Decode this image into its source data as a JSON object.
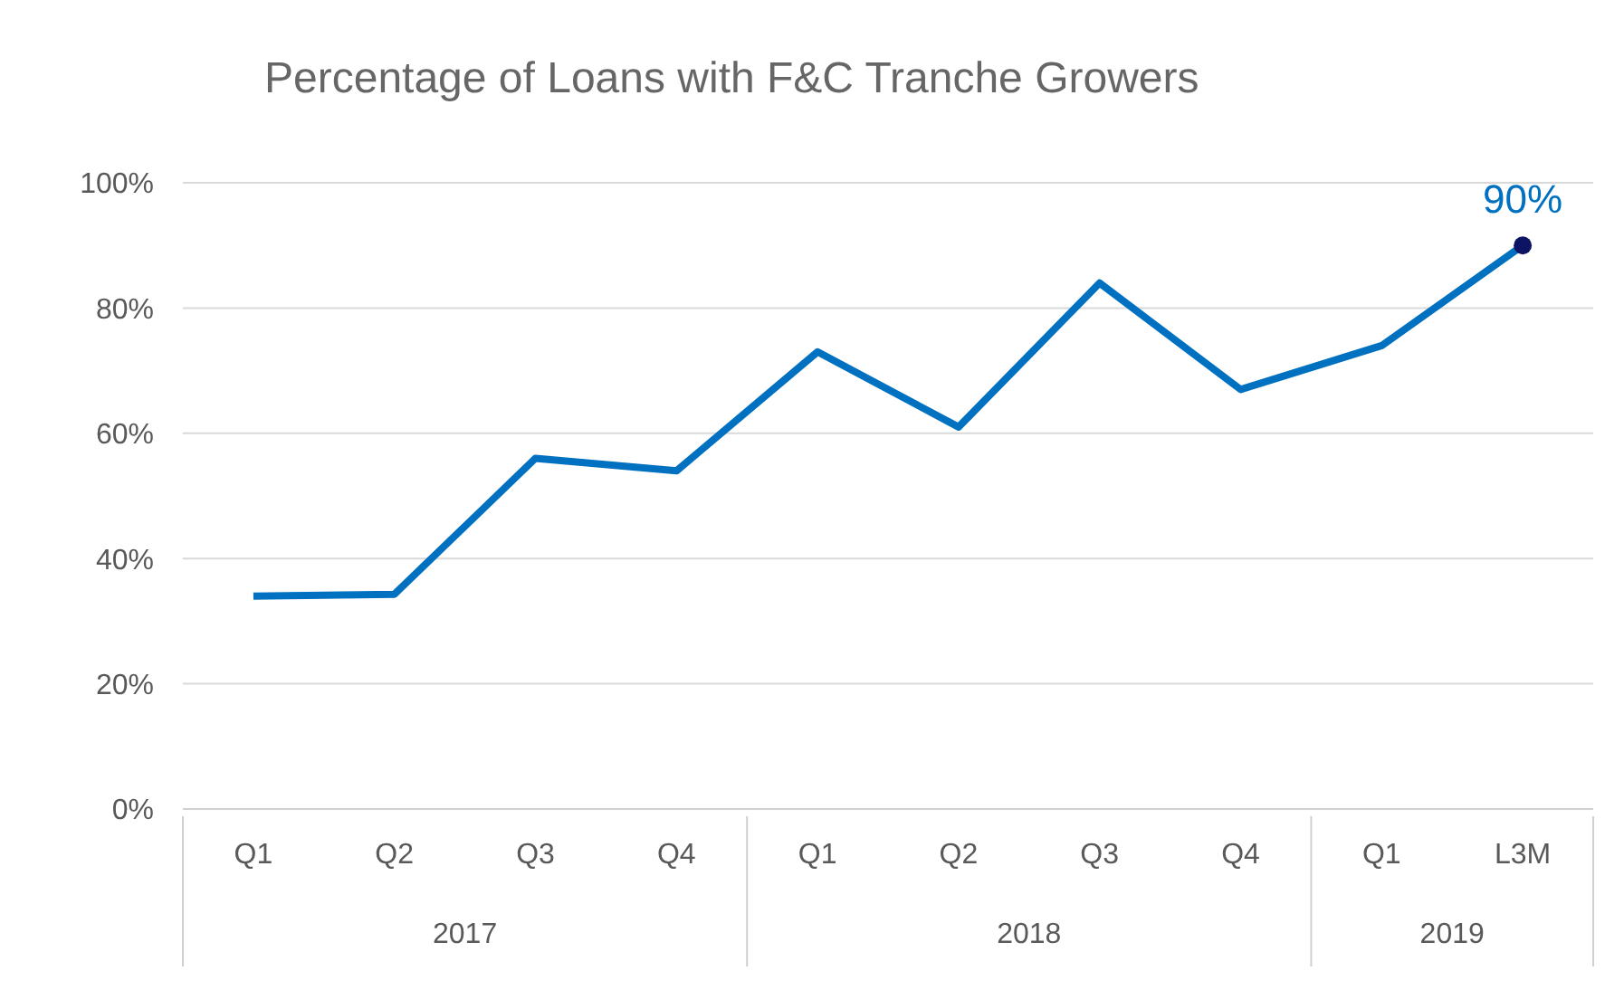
{
  "chart_data": {
    "type": "line",
    "title": "Percentage of Loans with F&C Tranche Growers",
    "categories": [
      "Q1",
      "Q2",
      "Q3",
      "Q4",
      "Q1",
      "Q2",
      "Q3",
      "Q4",
      "Q1",
      "L3M"
    ],
    "values": [
      34,
      34.3,
      56,
      54,
      73,
      61,
      84,
      67,
      74,
      90
    ],
    "value_labels": [
      null,
      null,
      null,
      null,
      null,
      null,
      null,
      null,
      null,
      "90%"
    ],
    "color": "#0070c0",
    "annotations": [
      "2017",
      "2018",
      "2019"
    ],
    "ylim": [
      0,
      100
    ],
    "yticks": [
      {
        "value": 0,
        "label": "0%"
      },
      {
        "value": 20,
        "label": "20%"
      },
      {
        "value": 40,
        "label": "40%"
      },
      {
        "value": 60,
        "label": "60%"
      },
      {
        "value": 80,
        "label": "80%"
      },
      {
        "value": 100,
        "label": "100%"
      }
    ],
    "grid": "y",
    "line_style": "solid"
  }
}
